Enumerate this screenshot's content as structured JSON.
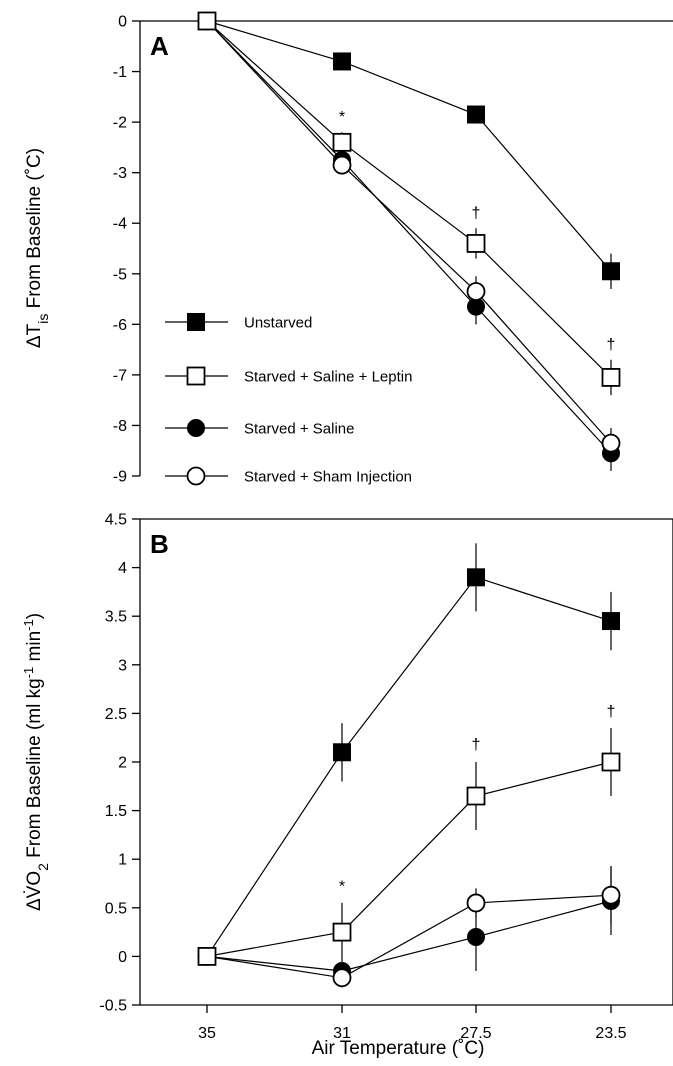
{
  "chart_data": [
    {
      "panel": "A",
      "type": "line",
      "ylabel": {
        "prefix": "ΔT",
        "sub": "is",
        "suffix": " From Baseline (˚C)"
      },
      "xlabel": "",
      "categories": [
        "35",
        "31",
        "27.5",
        "23.5"
      ],
      "ylim": [
        -9,
        0
      ],
      "yticks": [
        0,
        -1,
        -2,
        -3,
        -4,
        -5,
        -6,
        -7,
        -8,
        -9
      ],
      "zero_line": true,
      "legend_position": "bottom-left",
      "series": [
        {
          "name": "Unstarved",
          "marker": "square-filled",
          "values": [
            0,
            -0.8,
            -1.85,
            -4.95
          ],
          "err": [
            0,
            0.1,
            0.1,
            0.35
          ]
        },
        {
          "name": "Starved + Saline + Leptin",
          "marker": "square-open",
          "values": [
            0,
            -2.4,
            -4.4,
            -7.05
          ],
          "err": [
            0,
            0.2,
            0.3,
            0.35
          ]
        },
        {
          "name": "Starved + Saline",
          "marker": "circle-filled",
          "values": [
            0,
            -2.75,
            -5.65,
            -8.55
          ],
          "err": [
            0,
            0.2,
            0.35,
            0.35
          ]
        },
        {
          "name": "Starved + Sham Injection",
          "marker": "circle-open",
          "values": [
            0,
            -2.85,
            -5.35,
            -8.35
          ],
          "err": [
            0,
            0.15,
            0.3,
            0.3
          ]
        }
      ],
      "annotations": [
        {
          "text": "*",
          "category": "31",
          "y": -1.9
        },
        {
          "text": "†",
          "category": "27.5",
          "y": -3.8
        },
        {
          "text": "†",
          "category": "23.5",
          "y": -6.4
        }
      ]
    },
    {
      "panel": "B",
      "type": "line",
      "ylabel": {
        "prefix": "ΔV̇O",
        "sub": "2",
        "middle": " From Baseline (ml kg",
        "sup1": "-1",
        "middle2": " min",
        "sup2": "-1",
        "suffix": ")"
      },
      "xlabel": "Air Temperature (˚C)",
      "categories": [
        "35",
        "31",
        "27.5",
        "23.5"
      ],
      "ylim": [
        -0.5,
        4.5
      ],
      "yticks": [
        4.5,
        4,
        3.5,
        3,
        2.5,
        2,
        1.5,
        1,
        0.5,
        0,
        -0.5
      ],
      "series": [
        {
          "name": "Unstarved",
          "marker": "square-filled",
          "values": [
            0,
            2.1,
            3.9,
            3.45
          ],
          "err": [
            0,
            0.3,
            0.35,
            0.3
          ]
        },
        {
          "name": "Starved + Saline + Leptin",
          "marker": "square-open",
          "values": [
            0,
            0.25,
            1.65,
            2.0
          ],
          "err": [
            0,
            0.3,
            0.35,
            0.35
          ]
        },
        {
          "name": "Starved + Saline",
          "marker": "circle-filled",
          "values": [
            0,
            -0.15,
            0.2,
            0.57
          ],
          "err": [
            0,
            0.1,
            0.35,
            0.35
          ]
        },
        {
          "name": "Starved + Sham Injection",
          "marker": "circle-open",
          "values": [
            0,
            -0.22,
            0.55,
            0.63
          ],
          "err": [
            0,
            0.1,
            0.15,
            0.3
          ]
        }
      ],
      "annotations": [
        {
          "text": "*",
          "category": "31",
          "y": 0.72
        },
        {
          "text": "†",
          "category": "27.5",
          "y": 2.18
        },
        {
          "text": "†",
          "category": "23.5",
          "y": 2.52
        }
      ]
    }
  ]
}
